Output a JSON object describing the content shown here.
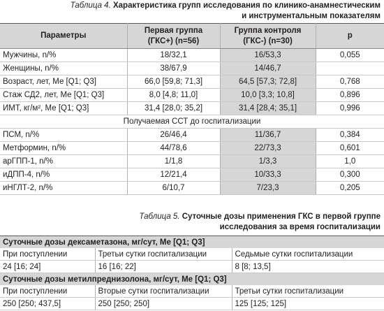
{
  "table4": {
    "caption_label": "Таблица 4.",
    "caption_title_line1": "Характеристика групп исследования по клинико-анамнестическим",
    "caption_title_line2": "и инструментальным показателям",
    "headers": {
      "param": "Параметры",
      "g1_line1": "Первая группа",
      "g1_line2": "(ГКС+) (n=56)",
      "g2_line1": "Группа контроля",
      "g2_line2": "(ГКС-) (n=30)",
      "p": "p"
    },
    "rows": [
      {
        "param": "Мужчины, n/%",
        "g1": "18/32,1",
        "g2": "16/53,3",
        "p": "0,055"
      },
      {
        "param": "Женщины, n/%",
        "g1": "38/67,9",
        "g2": "14/46,7",
        "p": ""
      },
      {
        "param": "Возраст, лет, Ме [Q1; Q3]",
        "g1": "66,0 [59,8; 71,3]",
        "g2": "64,5 [57,3; 72,8]",
        "p": "0,768"
      },
      {
        "param": "Стаж СД2, лет, Ме [Q1; Q3]",
        "g1": "8,0 [4,8; 11,0]",
        "g2": "10,0 [3,3; 10,8]",
        "p": "0,896"
      },
      {
        "param": "ИМТ, кг/м², Ме [Q1; Q3]",
        "g1": "31,4 [28,0; 35,2]",
        "g2": "31,4 [28,4; 35,1]",
        "p": "0,996"
      }
    ],
    "group_label": "Получаемая ССТ до госпитализации",
    "rows2": [
      {
        "param": "ПСМ, n/%",
        "g1": "26/46,4",
        "g2": "11/36,7",
        "p": "0,384"
      },
      {
        "param": "Метформин, n/%",
        "g1": "44/78,6",
        "g2": "22/73,3",
        "p": "0,601"
      },
      {
        "param": "арГПП-1, n/%",
        "g1": "1/1,8",
        "g2": "1/3,3",
        "p": "1,0"
      },
      {
        "param": "иДПП-4, n/%",
        "g1": "12/21,4",
        "g2": "10/33,3",
        "p": "0,300"
      },
      {
        "param": "иНГЛТ-2, n/%",
        "g1": "6/10,7",
        "g2": "7/23,3",
        "p": "0,205"
      }
    ]
  },
  "table5": {
    "caption_label": "Таблица 5.",
    "caption_title_line1": "Суточные дозы применения ГКС в первой группе",
    "caption_title_line2": "исследования за время госпитализации",
    "section1": "Суточные дозы дексаметазона, мг/сут, Ме [Q1; Q3]",
    "section1_labels": [
      "При поступлении",
      "Третьи сутки госпитализации",
      "Седьмые сутки госпитализации"
    ],
    "section1_values": [
      "24 [16; 24]",
      "16 [16; 22]",
      "8 [8; 13,5]"
    ],
    "section2": "Суточные дозы метилпреднизолона, мг/сут, Ме [Q1; Q3]",
    "section2_labels": [
      "При поступлении",
      "Вторые сутки госпитализации",
      "Третьи сутки госпитализации"
    ],
    "section2_values": [
      "250 [250; 437,5]",
      "250 [250; 250]",
      "125 [125; 125]"
    ]
  }
}
